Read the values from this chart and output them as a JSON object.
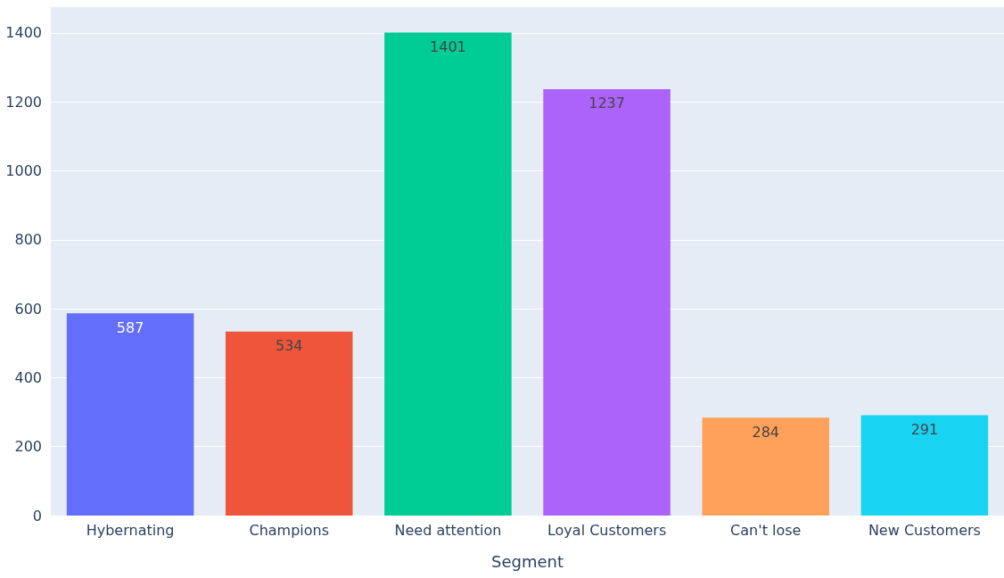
{
  "chart_data": {
    "type": "bar",
    "xlabel": "Segment",
    "categories": [
      "Hybernating",
      "Champions",
      "Need attention",
      "Loyal Customers",
      "Can't lose",
      "New Customers"
    ],
    "values": [
      587,
      534,
      1401,
      1237,
      284,
      291
    ],
    "colors": [
      "#636efa",
      "#ef553b",
      "#00cc96",
      "#ab63fa",
      "#ffa15a",
      "#19d3f3"
    ],
    "ylim": [
      0,
      1475
    ],
    "yticks": [
      0,
      200,
      400,
      600,
      800,
      1000,
      1200,
      1400
    ],
    "grid": "y",
    "data_labels": true
  }
}
